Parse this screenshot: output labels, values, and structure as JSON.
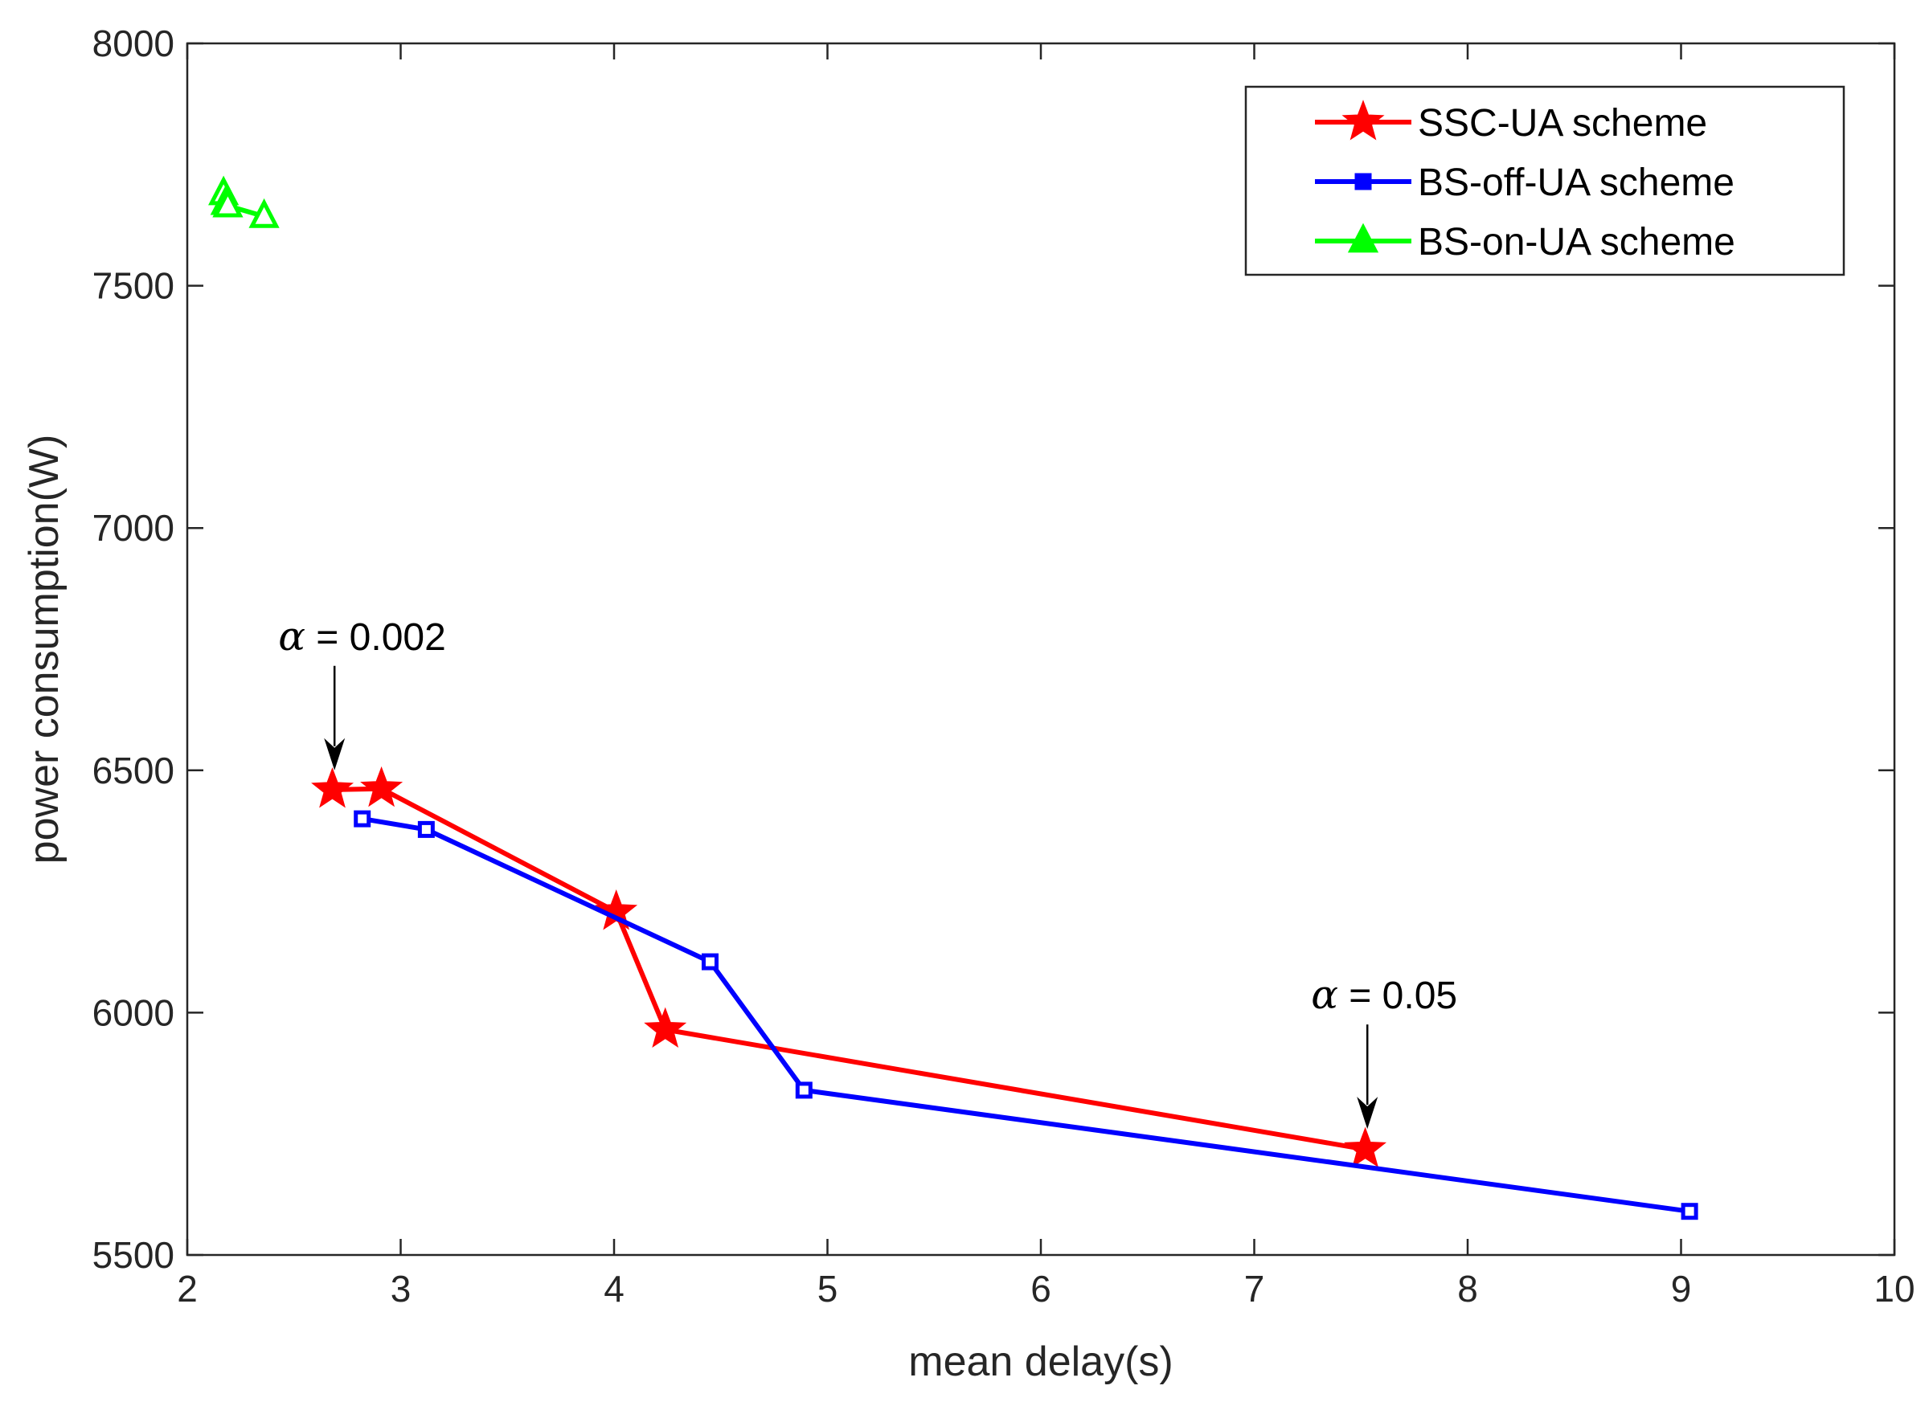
{
  "chart_data": {
    "type": "line",
    "title": "",
    "xlabel": "mean delay(s)",
    "ylabel": "power consumption(W)",
    "xlim": [
      2,
      10
    ],
    "ylim": [
      5500,
      8000
    ],
    "xticks": [
      2,
      3,
      4,
      5,
      6,
      7,
      8,
      9,
      10
    ],
    "yticks": [
      5500,
      6000,
      6500,
      7000,
      7500,
      8000
    ],
    "xtick_labels": [
      "2",
      "3",
      "4",
      "5",
      "6",
      "7",
      "8",
      "9",
      "10"
    ],
    "ytick_labels": [
      "5500",
      "6000",
      "6500",
      "7000",
      "7500",
      "8000"
    ],
    "grid": false,
    "legend_position": "top-right",
    "series": [
      {
        "name": "SSC-UA scheme",
        "color": "#ff0000",
        "marker": "star",
        "x": [
          2.68,
          2.91,
          4.01,
          4.24,
          7.52
        ],
        "y": [
          6460,
          6462,
          6208,
          5965,
          5718
        ]
      },
      {
        "name": "BS-off-UA scheme",
        "color": "#0000ff",
        "marker": "square",
        "x": [
          2.82,
          3.12,
          4.45,
          4.89,
          9.04
        ],
        "y": [
          6400,
          6378,
          6105,
          5840,
          5590
        ]
      },
      {
        "name": "BS-on-UA scheme",
        "color": "#00ff00",
        "marker": "triangle",
        "x": [
          2.17,
          2.18,
          2.19,
          2.36
        ],
        "y": [
          7690,
          7670,
          7665,
          7643
        ]
      }
    ],
    "annotations": [
      {
        "symbol": "α",
        "text": " = 0.002",
        "arrow_to": {
          "x": 2.69,
          "y": 6500
        }
      },
      {
        "symbol": "α",
        "text": " = 0.05",
        "arrow_to": {
          "x": 7.53,
          "y": 5760
        }
      }
    ]
  }
}
